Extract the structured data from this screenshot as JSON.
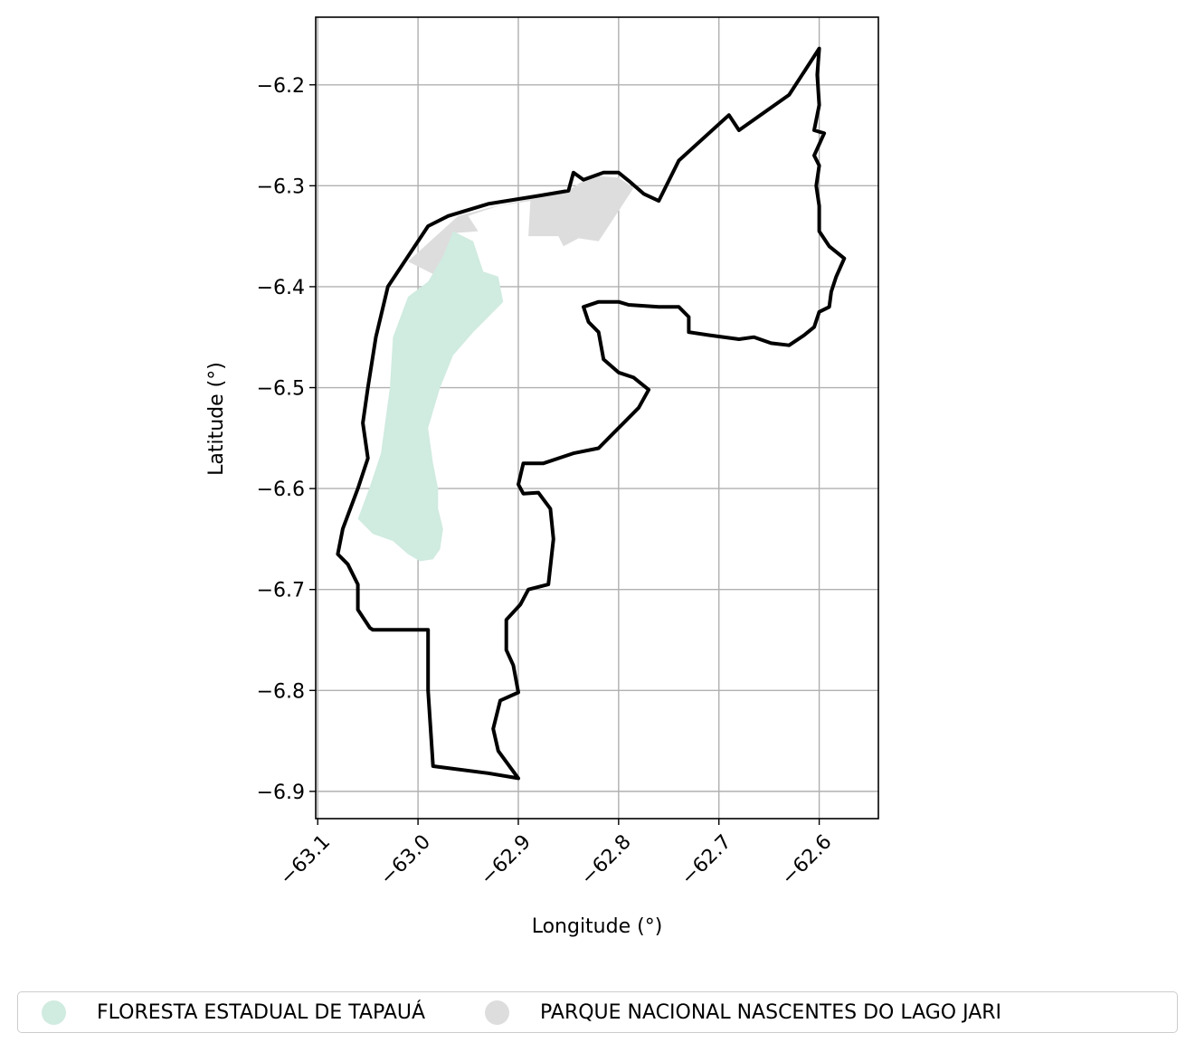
{
  "chart_data": {
    "type": "map",
    "xlabel": "Longitude (°)",
    "ylabel": "Latitude (°)",
    "xlim": [
      -63.102,
      -62.541
    ],
    "ylim": [
      -6.927,
      -6.133
    ],
    "xticks": [
      -63.1,
      -63.0,
      -62.9,
      -62.8,
      -62.7,
      -62.6
    ],
    "xtick_labels": [
      "−63.1",
      "−63.0",
      "−62.9",
      "−62.8",
      "−62.7",
      "−62.6"
    ],
    "yticks": [
      -6.2,
      -6.3,
      -6.4,
      -6.5,
      -6.6,
      -6.7,
      -6.8,
      -6.9
    ],
    "ytick_labels": [
      "−6.2",
      "−6.3",
      "−6.4",
      "−6.5",
      "−6.6",
      "−6.7",
      "−6.8",
      "−6.9"
    ],
    "grid": true,
    "legend_placement": "bottom-center",
    "layers": [
      {
        "name": "PARQUE NACIONAL NASCENTES DO LAGO JARI",
        "color": "#dddddd",
        "coords": [
          [
            -62.98,
            -6.39
          ],
          [
            -63.01,
            -6.375
          ],
          [
            -62.96,
            -6.33
          ],
          [
            -62.93,
            -6.322
          ],
          [
            -62.85,
            -6.305
          ],
          [
            -62.84,
            -6.298
          ],
          [
            -62.825,
            -6.29
          ],
          [
            -62.8,
            -6.292
          ],
          [
            -62.785,
            -6.302
          ],
          [
            -62.81,
            -6.34
          ],
          [
            -62.82,
            -6.355
          ],
          [
            -62.84,
            -6.352
          ],
          [
            -62.855,
            -6.36
          ],
          [
            -62.86,
            -6.35
          ],
          [
            -62.89,
            -6.35
          ],
          [
            -62.888,
            -6.315
          ],
          [
            -62.92,
            -6.32
          ],
          [
            -62.95,
            -6.33
          ],
          [
            -62.94,
            -6.345
          ],
          [
            -62.965,
            -6.347
          ],
          [
            -62.975,
            -6.37
          ]
        ]
      },
      {
        "name": "FLORESTA ESTADUAL DE TAPAUÁ",
        "color": "#d0ebe0",
        "coords": [
          [
            -62.965,
            -6.345
          ],
          [
            -62.945,
            -6.355
          ],
          [
            -62.935,
            -6.385
          ],
          [
            -62.92,
            -6.39
          ],
          [
            -62.915,
            -6.415
          ],
          [
            -62.945,
            -6.445
          ],
          [
            -62.965,
            -6.468
          ],
          [
            -62.978,
            -6.5
          ],
          [
            -62.99,
            -6.54
          ],
          [
            -62.985,
            -6.575
          ],
          [
            -62.98,
            -6.6
          ],
          [
            -62.98,
            -6.62
          ],
          [
            -62.975,
            -6.64
          ],
          [
            -62.978,
            -6.66
          ],
          [
            -62.985,
            -6.67
          ],
          [
            -62.998,
            -6.672
          ],
          [
            -63.01,
            -6.665
          ],
          [
            -63.025,
            -6.652
          ],
          [
            -63.045,
            -6.645
          ],
          [
            -63.06,
            -6.63
          ],
          [
            -63.048,
            -6.598
          ],
          [
            -63.037,
            -6.565
          ],
          [
            -63.028,
            -6.5
          ],
          [
            -63.025,
            -6.45
          ],
          [
            -63.01,
            -6.41
          ],
          [
            -62.99,
            -6.395
          ],
          [
            -62.975,
            -6.37
          ]
        ]
      },
      {
        "name": "municipality-boundary",
        "color": "#000000",
        "coords": [
          [
            -62.6,
            -6.164
          ],
          [
            -62.63,
            -6.21
          ],
          [
            -62.68,
            -6.245
          ],
          [
            -62.69,
            -6.23
          ],
          [
            -62.74,
            -6.275
          ],
          [
            -62.76,
            -6.315
          ],
          [
            -62.775,
            -6.308
          ],
          [
            -62.79,
            -6.295
          ],
          [
            -62.8,
            -6.287
          ],
          [
            -62.815,
            -6.287
          ],
          [
            -62.835,
            -6.294
          ],
          [
            -62.845,
            -6.287
          ],
          [
            -62.85,
            -6.305
          ],
          [
            -62.88,
            -6.31
          ],
          [
            -62.93,
            -6.318
          ],
          [
            -62.97,
            -6.33
          ],
          [
            -62.99,
            -6.34
          ],
          [
            -63.03,
            -6.4
          ],
          [
            -63.042,
            -6.45
          ],
          [
            -63.05,
            -6.5
          ],
          [
            -63.055,
            -6.535
          ],
          [
            -63.05,
            -6.57
          ],
          [
            -63.06,
            -6.6
          ],
          [
            -63.075,
            -6.64
          ],
          [
            -63.08,
            -6.665
          ],
          [
            -63.07,
            -6.675
          ],
          [
            -63.06,
            -6.695
          ],
          [
            -63.06,
            -6.72
          ],
          [
            -63.048,
            -6.738
          ],
          [
            -63.045,
            -6.74
          ],
          [
            -63.02,
            -6.74
          ],
          [
            -62.99,
            -6.74
          ],
          [
            -62.99,
            -6.8
          ],
          [
            -62.985,
            -6.875
          ],
          [
            -62.93,
            -6.882
          ],
          [
            -62.9,
            -6.887
          ],
          [
            -62.92,
            -6.86
          ],
          [
            -62.925,
            -6.838
          ],
          [
            -62.918,
            -6.81
          ],
          [
            -62.9,
            -6.802
          ],
          [
            -62.905,
            -6.775
          ],
          [
            -62.912,
            -6.76
          ],
          [
            -62.912,
            -6.73
          ],
          [
            -62.898,
            -6.715
          ],
          [
            -62.89,
            -6.7
          ],
          [
            -62.87,
            -6.695
          ],
          [
            -62.865,
            -6.65
          ],
          [
            -62.868,
            -6.62
          ],
          [
            -62.88,
            -6.604
          ],
          [
            -62.895,
            -6.605
          ],
          [
            -62.9,
            -6.596
          ],
          [
            -62.895,
            -6.575
          ],
          [
            -62.875,
            -6.575
          ],
          [
            -62.845,
            -6.565
          ],
          [
            -62.82,
            -6.56
          ],
          [
            -62.805,
            -6.545
          ],
          [
            -62.795,
            -6.535
          ],
          [
            -62.78,
            -6.52
          ],
          [
            -62.77,
            -6.502
          ],
          [
            -62.785,
            -6.49
          ],
          [
            -62.8,
            -6.485
          ],
          [
            -62.815,
            -6.472
          ],
          [
            -62.82,
            -6.445
          ],
          [
            -62.83,
            -6.435
          ],
          [
            -62.835,
            -6.42
          ],
          [
            -62.82,
            -6.415
          ],
          [
            -62.8,
            -6.415
          ],
          [
            -62.79,
            -6.418
          ],
          [
            -62.76,
            -6.42
          ],
          [
            -62.74,
            -6.42
          ],
          [
            -62.73,
            -6.43
          ],
          [
            -62.73,
            -6.445
          ],
          [
            -62.71,
            -6.448
          ],
          [
            -62.68,
            -6.452
          ],
          [
            -62.665,
            -6.45
          ],
          [
            -62.648,
            -6.456
          ],
          [
            -62.63,
            -6.458
          ],
          [
            -62.615,
            -6.448
          ],
          [
            -62.605,
            -6.44
          ],
          [
            -62.6,
            -6.425
          ],
          [
            -62.59,
            -6.42
          ],
          [
            -62.588,
            -6.405
          ],
          [
            -62.583,
            -6.39
          ],
          [
            -62.575,
            -6.372
          ],
          [
            -62.59,
            -6.36
          ],
          [
            -62.6,
            -6.345
          ],
          [
            -62.6,
            -6.32
          ],
          [
            -62.603,
            -6.3
          ],
          [
            -62.6,
            -6.28
          ],
          [
            -62.605,
            -6.27
          ],
          [
            -62.595,
            -6.248
          ],
          [
            -62.605,
            -6.245
          ],
          [
            -62.6,
            -6.22
          ],
          [
            -62.602,
            -6.19
          ],
          [
            -62.6,
            -6.164
          ]
        ]
      }
    ]
  },
  "legend": {
    "items": [
      {
        "label": "FLORESTA ESTADUAL DE TAPAUÁ",
        "color": "#d0ebe0"
      },
      {
        "label": "PARQUE NACIONAL NASCENTES DO LAGO JARI",
        "color": "#dddddd"
      }
    ]
  }
}
